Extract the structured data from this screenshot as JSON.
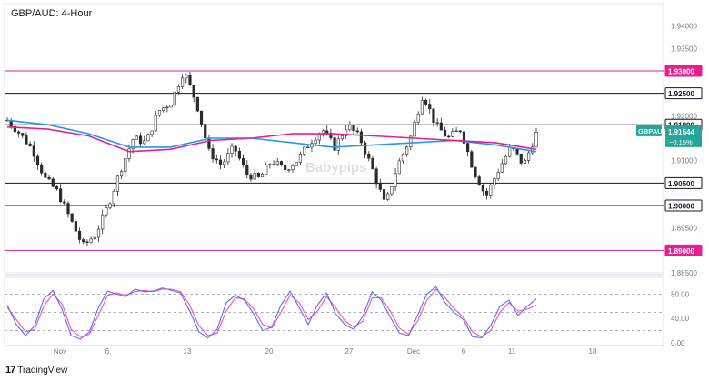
{
  "title": "GBP/AUD: 4-Hour",
  "watermark": "Babypips",
  "footer": {
    "brand": "TradingView"
  },
  "colors": {
    "bull": "#26a69a",
    "bear": "#ef5350",
    "candle": "#2b2b2b",
    "ma_fast": "#e91e8c",
    "ma_slow": "#2196f3",
    "magenta_level": "#e91e8c",
    "black_level": "#131722",
    "stoch_k": "#5b6cff",
    "stoch_d": "#ff4db8",
    "tag_bg": "#26a69a"
  },
  "chart_data": [
    {
      "type": "candlestick",
      "symbol": "GBPAUD",
      "title": "GBP/AUD: 4-Hour",
      "ylim": [
        1.885,
        1.945
      ],
      "y_ticks": [
        "1.94000",
        "1.93500",
        "1.93000",
        "1.92500",
        "1.92000",
        "1.91800",
        "1.91500",
        "1.91000",
        "1.90500",
        "1.90000",
        "1.89500",
        "1.89000",
        "1.88500"
      ],
      "x_ticks": [
        "Nov",
        "6",
        "13",
        "20",
        "27",
        "Dec",
        "6",
        "11",
        "18"
      ],
      "levels": [
        {
          "value": 1.93,
          "label": "1.93000",
          "style": "magenta"
        },
        {
          "value": 1.925,
          "label": "1.92500",
          "style": "black"
        },
        {
          "value": 1.918,
          "label": "1.91800",
          "style": "black"
        },
        {
          "value": 1.905,
          "label": "1.90500",
          "style": "black"
        },
        {
          "value": 1.9,
          "label": "1.90000",
          "style": "black"
        },
        {
          "value": 1.89,
          "label": "1.89000",
          "style": "magenta"
        }
      ],
      "last_price": {
        "symbol": "GBPAUD",
        "value": "1.91544",
        "change": "−0.15%",
        "y": 1.91544
      },
      "trend_anchors": [
        1.919,
        1.916,
        1.9125,
        1.906,
        1.903,
        1.897,
        1.891,
        1.8935,
        1.9,
        1.908,
        1.915,
        1.914,
        1.921,
        1.923,
        1.93,
        1.923,
        1.912,
        1.909,
        1.913,
        1.907,
        1.906,
        1.91,
        1.908,
        1.91,
        1.914,
        1.917,
        1.913,
        1.918,
        1.915,
        1.908,
        1.9,
        1.909,
        1.915,
        1.925,
        1.918,
        1.915,
        1.917,
        1.908,
        1.902,
        1.908,
        1.913,
        1.909,
        1.916
      ],
      "ma_fast": [
        1.9175,
        1.917,
        1.9155,
        1.912,
        1.9125,
        1.9145,
        1.915,
        1.916,
        1.916,
        1.9155,
        1.915,
        1.9145,
        1.914,
        1.9125
      ],
      "ma_slow": [
        1.919,
        1.918,
        1.916,
        1.913,
        1.913,
        1.915,
        1.915,
        1.914,
        1.913,
        1.9135,
        1.914,
        1.9145,
        1.9135,
        1.912
      ]
    },
    {
      "type": "line",
      "name": "Stochastic",
      "ylim": [
        0,
        100
      ],
      "y_ticks": [
        "80.00",
        "40.00",
        "0.00"
      ],
      "bands": [
        80,
        50,
        20
      ],
      "k": [
        62,
        30,
        12,
        28,
        72,
        86,
        55,
        12,
        6,
        18,
        58,
        85,
        80,
        76,
        88,
        84,
        85,
        90,
        86,
        82,
        52,
        18,
        8,
        22,
        66,
        78,
        70,
        48,
        20,
        26,
        62,
        85,
        58,
        30,
        62,
        82,
        48,
        30,
        22,
        44,
        84,
        70,
        42,
        16,
        12,
        46,
        80,
        92,
        66,
        50,
        38,
        10,
        8,
        28,
        60,
        70,
        45,
        60,
        72
      ],
      "d": [
        58,
        38,
        18,
        22,
        60,
        80,
        64,
        22,
        10,
        14,
        46,
        78,
        82,
        78,
        84,
        86,
        84,
        88,
        88,
        84,
        62,
        28,
        12,
        16,
        52,
        74,
        72,
        56,
        30,
        24,
        50,
        78,
        66,
        38,
        52,
        76,
        58,
        36,
        26,
        36,
        74,
        74,
        52,
        24,
        14,
        36,
        70,
        88,
        74,
        56,
        42,
        18,
        10,
        20,
        50,
        66,
        52,
        55,
        62
      ]
    }
  ]
}
